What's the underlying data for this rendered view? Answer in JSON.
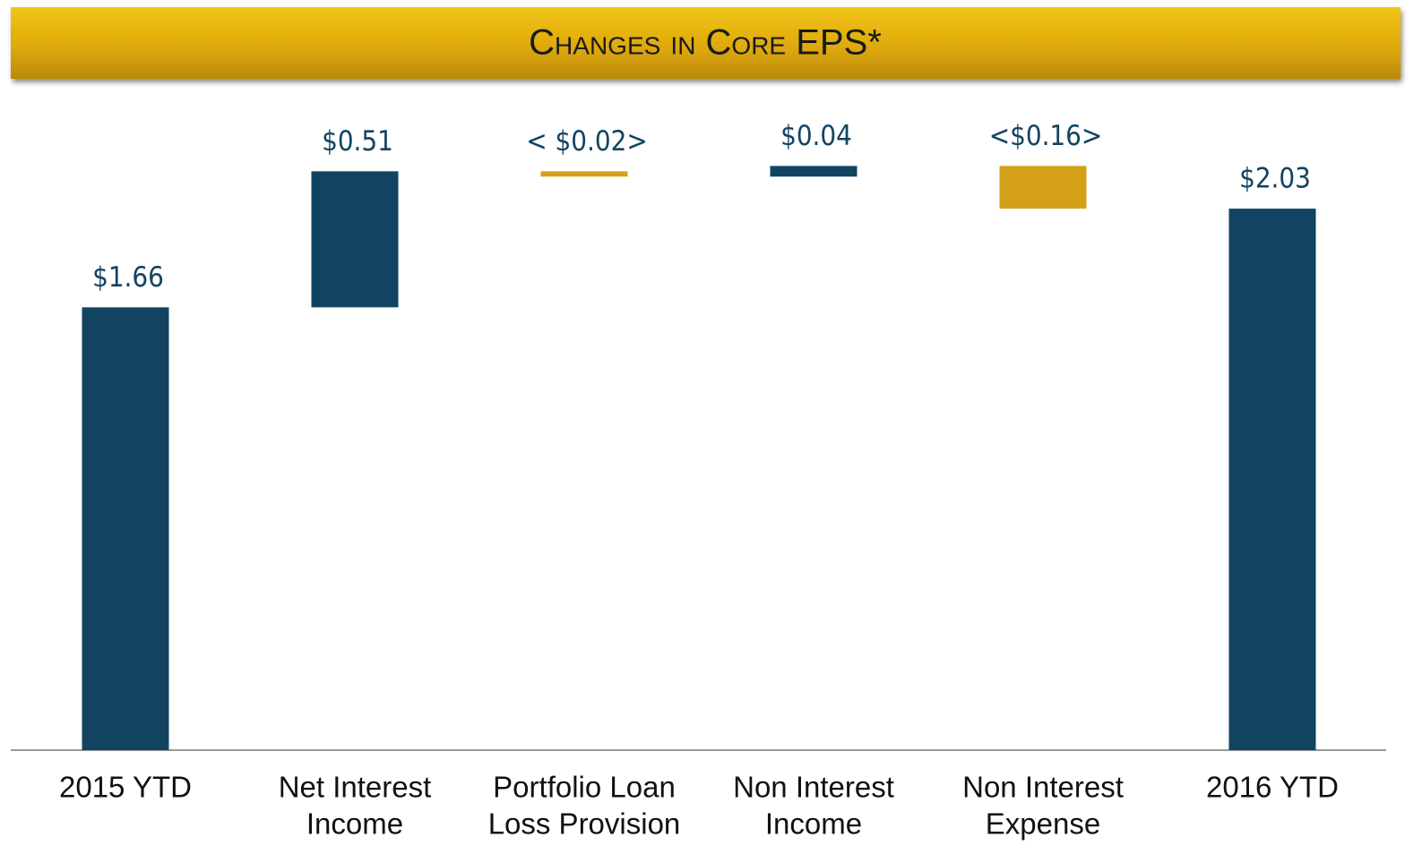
{
  "chart_data": {
    "type": "waterfall",
    "title": "Changes in Core EPS*",
    "categories": [
      [
        "2015 YTD"
      ],
      [
        "Net Interest",
        "Income"
      ],
      [
        "Portfolio Loan",
        "Loss Provision"
      ],
      [
        "Non Interest",
        "Income"
      ],
      [
        "Non Interest",
        "Expense"
      ],
      [
        "2016 YTD"
      ]
    ],
    "values": [
      1.66,
      0.51,
      -0.02,
      0.04,
      -0.16,
      2.03
    ],
    "value_labels": [
      "$1.66",
      "$0.51",
      "< $0.02>",
      "$0.04",
      "<$0.16>",
      "$2.03"
    ],
    "color": "#124462",
    "negative_color": "#d4a017",
    "ylim": [
      0,
      2.5
    ]
  }
}
